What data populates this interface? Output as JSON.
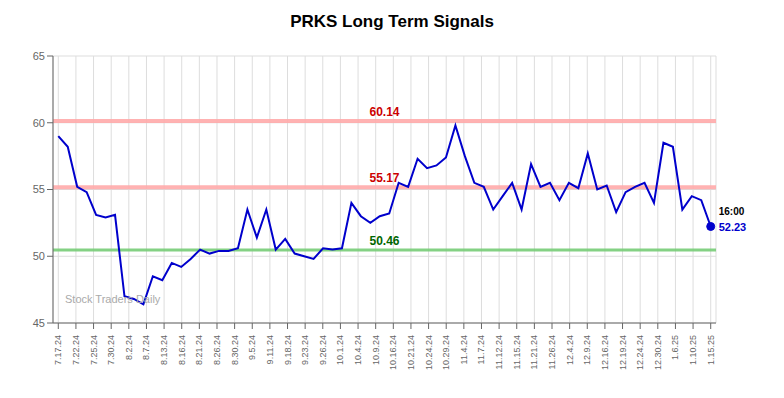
{
  "chart_data": {
    "type": "line",
    "title": "PRKS Long Term Signals",
    "color": "#0000cc",
    "grid": true,
    "xlim": [
      -0.3,
      37.3
    ],
    "xticks": [
      {
        "value": 0,
        "label": "7.17.24"
      },
      {
        "value": 1,
        "label": "7.22.24"
      },
      {
        "value": 2,
        "label": "7.25.24"
      },
      {
        "value": 3,
        "label": "7.30.24"
      },
      {
        "value": 4,
        "label": "8.2.24"
      },
      {
        "value": 5,
        "label": "8.7.24"
      },
      {
        "value": 6,
        "label": "8.13.24"
      },
      {
        "value": 7,
        "label": "8.16.24"
      },
      {
        "value": 8,
        "label": "8.21.24"
      },
      {
        "value": 9,
        "label": "8.26.24"
      },
      {
        "value": 10,
        "label": "8.30.24"
      },
      {
        "value": 11,
        "label": "9.5.24"
      },
      {
        "value": 12,
        "label": "9.11.24"
      },
      {
        "value": 13,
        "label": "9.18.24"
      },
      {
        "value": 14,
        "label": "9.23.24"
      },
      {
        "value": 15,
        "label": "9.26.24"
      },
      {
        "value": 16,
        "label": "10.1.24"
      },
      {
        "value": 17,
        "label": "10.4.24"
      },
      {
        "value": 18,
        "label": "10.9.24"
      },
      {
        "value": 19,
        "label": "10.16.24"
      },
      {
        "value": 20,
        "label": "10.21.24"
      },
      {
        "value": 21,
        "label": "10.24.24"
      },
      {
        "value": 22,
        "label": "10.29.24"
      },
      {
        "value": 23,
        "label": "11.4.24"
      },
      {
        "value": 24,
        "label": "11.7.24"
      },
      {
        "value": 25,
        "label": "11.12.24"
      },
      {
        "value": 26,
        "label": "11.15.24"
      },
      {
        "value": 27,
        "label": "11.21.24"
      },
      {
        "value": 28,
        "label": "11.26.24"
      },
      {
        "value": 29,
        "label": "12.4.24"
      },
      {
        "value": 30,
        "label": "12.9.24"
      },
      {
        "value": 31,
        "label": "12.16.24"
      },
      {
        "value": 32,
        "label": "12.19.24"
      },
      {
        "value": 33,
        "label": "12.24.24"
      },
      {
        "value": 34,
        "label": "12.30.24"
      },
      {
        "value": 35,
        "label": "1.6.25"
      },
      {
        "value": 36,
        "label": "1.10.25"
      },
      {
        "value": 37,
        "label": "1.15.25"
      }
    ],
    "ylim": [
      45,
      65
    ],
    "yticks": [
      45,
      50,
      55,
      60,
      65
    ],
    "x": [
      0,
      0.536232,
      1.072464,
      1.608696,
      2.144928,
      2.681159,
      3.217391,
      3.753623,
      4.289855,
      4.826087,
      5.362319,
      5.898551,
      6.434783,
      6.971014,
      7.507246,
      8.043478,
      8.57971,
      9.115942,
      9.652174,
      10.188406,
      10.724638,
      11.26087,
      11.797101,
      12.333333,
      12.869565,
      13.405797,
      13.942029,
      14.478261,
      15.014493,
      15.550725,
      16.086957,
      16.623188,
      17.15942,
      17.695652,
      18.231884,
      18.768116,
      19.304348,
      19.84058,
      20.376812,
      20.913043,
      21.449275,
      21.985507,
      22.521739,
      23.057971,
      23.594203,
      24.130435,
      24.666667,
      25.202899,
      25.73913,
      26.275362,
      26.811594,
      27.347826,
      27.884058,
      28.42029,
      28.956522,
      29.492754,
      30.028986,
      30.565217,
      31.101449,
      31.637681,
      32.173913,
      32.710145,
      33.246377,
      33.782609,
      34.318841,
      34.855072,
      35.391304,
      35.927536,
      36.463768,
      37
    ],
    "values": [
      59.0,
      58.2,
      55.2,
      54.8,
      53.1,
      52.9,
      53.1,
      47.0,
      46.8,
      46.4,
      48.5,
      48.2,
      49.5,
      49.2,
      49.8,
      50.5,
      50.2,
      50.4,
      50.4,
      50.6,
      53.5,
      51.4,
      53.5,
      50.5,
      51.3,
      50.2,
      50.0,
      49.8,
      50.6,
      50.5,
      50.6,
      54.0,
      53.0,
      52.5,
      53.0,
      53.2,
      55.5,
      55.2,
      57.3,
      56.6,
      56.8,
      57.4,
      59.8,
      57.5,
      55.5,
      55.2,
      53.5,
      54.5,
      55.5,
      53.5,
      56.9,
      55.2,
      55.5,
      54.2,
      55.5,
      55.1,
      57.7,
      55.0,
      55.3,
      53.3,
      54.8,
      55.2,
      55.5,
      54.0,
      58.5,
      58.2,
      53.5,
      54.5,
      54.2,
      52.23
    ],
    "reference_lines": [
      {
        "value": 60.14,
        "label": "60.14",
        "color": "#ffaaaa",
        "label_color": "#cc0000"
      },
      {
        "value": 55.17,
        "label": "55.17",
        "color": "#ffaaaa",
        "label_color": "#cc0000"
      },
      {
        "value": 50.46,
        "label": "50.46",
        "color": "#77cc77",
        "label_color": "#006600"
      }
    ],
    "end_label": {
      "time": "16:00",
      "value": 52.23
    },
    "watermark": "Stock Traders Daily"
  }
}
